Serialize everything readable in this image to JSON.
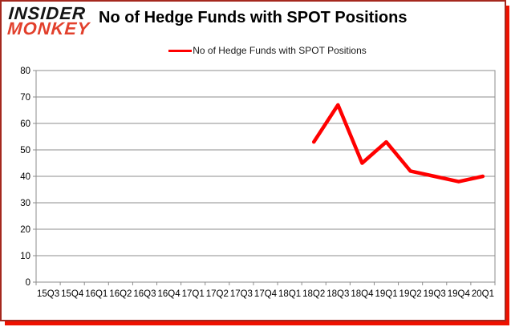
{
  "logo": {
    "line1": "INSIDER",
    "line2": "MONKEY"
  },
  "title": "No of Hedge Funds with SPOT Positions",
  "legend": {
    "label": "No of Hedge Funds with SPOT Positions",
    "color": "#ff0000"
  },
  "colors": {
    "series_line": "#ff0000",
    "gridline": "#8c8c8c",
    "axis_text": "#000000",
    "frame_border_dark": "#a5281e",
    "frame_shadow_red": "#ee1100",
    "logo_black": "#141414",
    "logo_red": "#e2402c"
  },
  "chart_data": {
    "type": "line",
    "title": "No of Hedge Funds with SPOT Positions",
    "xlabel": "",
    "ylabel": "",
    "categories": [
      "15Q3",
      "15Q4",
      "16Q1",
      "16Q2",
      "16Q3",
      "16Q4",
      "17Q1",
      "17Q2",
      "17Q3",
      "17Q4",
      "18Q1",
      "18Q2",
      "18Q3",
      "18Q4",
      "19Q1",
      "19Q2",
      "19Q3",
      "19Q4",
      "20Q1"
    ],
    "series": [
      {
        "name": "No of Hedge Funds with SPOT Positions",
        "color": "#ff0000",
        "values": [
          null,
          null,
          null,
          null,
          null,
          null,
          null,
          null,
          null,
          null,
          null,
          53,
          67,
          45,
          53,
          42,
          40,
          38,
          40
        ]
      }
    ],
    "ylim": [
      0,
      80
    ],
    "yticks": [
      0,
      10,
      20,
      30,
      40,
      50,
      60,
      70,
      80
    ],
    "grid": true,
    "legend_position": "top-center"
  }
}
